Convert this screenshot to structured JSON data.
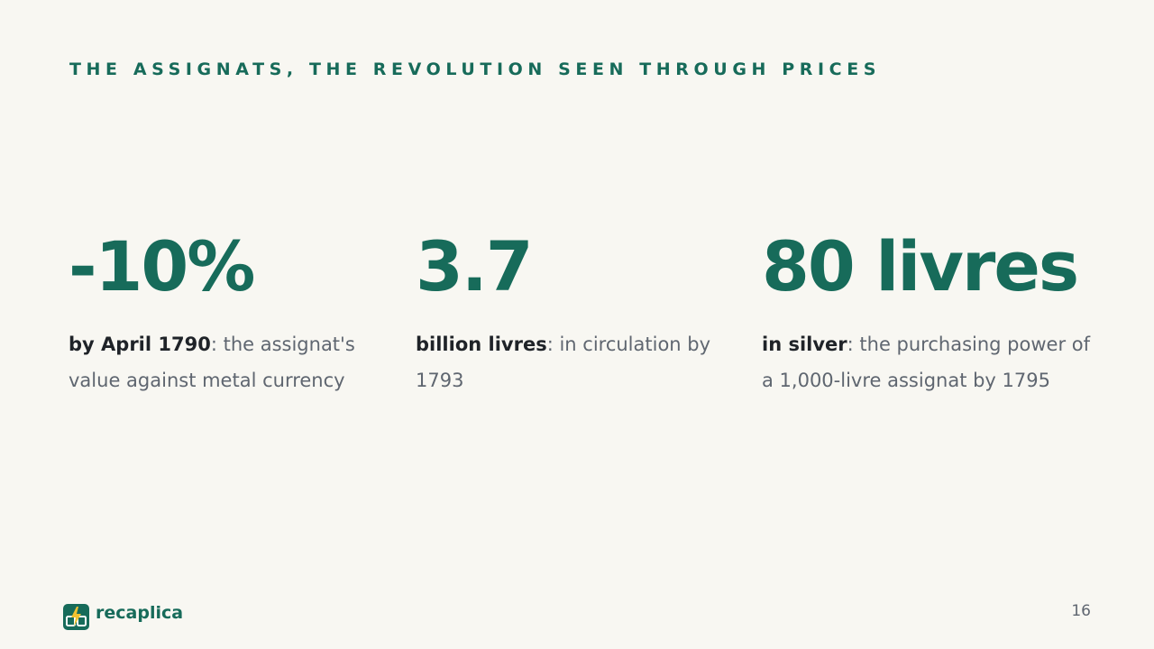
{
  "header": {
    "title": "THE ASSIGNATS, THE REVOLUTION SEEN THROUGH PRICES"
  },
  "stats": [
    {
      "value": "-10%",
      "label_bold": "by April 1790",
      "label_rest": ": the assignat's value against metal currency"
    },
    {
      "value": "3.7",
      "label_bold": "billion livres",
      "label_rest": ": in circulation by 1793"
    },
    {
      "value": "80 livres",
      "label_bold": "in silver",
      "label_rest": ": the purchasing power of a 1,000-livre assignat by 1795"
    }
  ],
  "footer": {
    "brand": "recaplica",
    "page_number": "16"
  }
}
